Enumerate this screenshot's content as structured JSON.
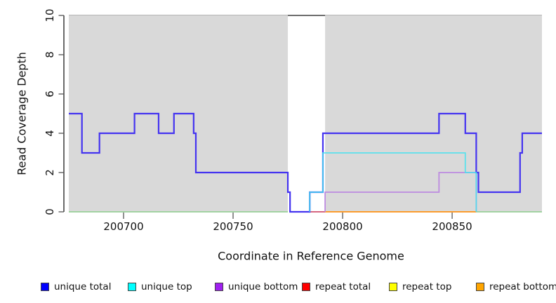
{
  "chart_data": {
    "type": "line",
    "subtype": "step-coverage-plot",
    "title": "",
    "xlabel": "Coordinate in Reference Genome",
    "ylabel": "Read Coverage Depth",
    "xlim": [
      200675,
      200891
    ],
    "ylim": [
      0,
      10
    ],
    "x_ticks": [
      "200700",
      "200750",
      "200800",
      "200850"
    ],
    "x_tick_values": [
      200700,
      200750,
      200800,
      200850
    ],
    "y_ticks": [
      "0",
      "2",
      "4",
      "6",
      "8",
      "10"
    ],
    "y_tick_values": [
      0,
      2,
      4,
      6,
      8,
      10
    ],
    "grid": false,
    "plot_background": "#d9d9d9",
    "plot_background_top_edge": "#b5b5b5",
    "axis_color": "#1a1a1a",
    "tick_color": "#555555",
    "gap_band": {
      "x1": 200775,
      "x2": 200792,
      "fill": "#ffffff",
      "top_border": "#6e6e6e"
    },
    "zero_segments": [
      {
        "name": "baseline-left-green",
        "color": "#97cf97",
        "x1": 200675,
        "x2": 200775
      },
      {
        "name": "repeat-total-red",
        "color": "#d0506e",
        "x1": 200785,
        "x2": 200792
      },
      {
        "name": "repeat-bottom-orange",
        "color": "#ff9013",
        "x1": 200792,
        "x2": 200861
      },
      {
        "name": "baseline-right-green",
        "color": "#97cf97",
        "x1": 200861,
        "x2": 200891
      }
    ],
    "series": [
      {
        "name": "unique bottom",
        "color": "#bd8be0",
        "width": 1.8,
        "opacity": 1,
        "runs": [
          [
            200792,
            200792,
            0
          ],
          [
            200792,
            200844,
            1
          ],
          [
            200844,
            200861,
            2
          ],
          [
            200861,
            200861,
            0
          ]
        ]
      },
      {
        "name": "unique total",
        "color": "#4433f0",
        "width": 2.2,
        "opacity": 1,
        "runs": [
          [
            200675,
            200681,
            5
          ],
          [
            200681,
            200689,
            3
          ],
          [
            200689,
            200705,
            4
          ],
          [
            200705,
            200716,
            5
          ],
          [
            200716,
            200723,
            4
          ],
          [
            200723,
            200732,
            5
          ],
          [
            200732,
            200733,
            4
          ],
          [
            200733,
            200775,
            2
          ],
          [
            200775,
            200776,
            1
          ],
          [
            200776,
            200785,
            0
          ],
          [
            200785,
            200791,
            1
          ],
          [
            200791,
            200844,
            4
          ],
          [
            200844,
            200856,
            5
          ],
          [
            200856,
            200861,
            4
          ],
          [
            200861,
            200862,
            2
          ],
          [
            200862,
            200881,
            1
          ],
          [
            200881,
            200882,
            3
          ],
          [
            200882,
            200891,
            4
          ]
        ]
      },
      {
        "name": "unique top",
        "color": "#44e3ee",
        "width": 1.8,
        "opacity": 0.85,
        "runs": [
          [
            200785,
            200785,
            0
          ],
          [
            200785,
            200791,
            1
          ],
          [
            200791,
            200856,
            3
          ],
          [
            200856,
            200861,
            2
          ],
          [
            200861,
            200861,
            0
          ]
        ]
      }
    ],
    "legend": [
      {
        "label": "unique total",
        "color": "#0000ff"
      },
      {
        "label": "unique top",
        "color": "#00ffff"
      },
      {
        "label": "unique bottom",
        "color": "#a020f0"
      },
      {
        "label": "repeat total",
        "color": "#ff0000"
      },
      {
        "label": "repeat top",
        "color": "#ffff00"
      },
      {
        "label": "repeat bottom",
        "color": "#ffa500"
      }
    ],
    "legend_position": "bottom"
  }
}
